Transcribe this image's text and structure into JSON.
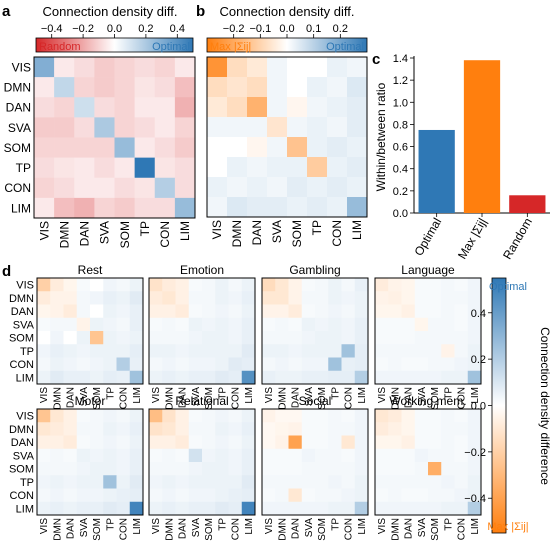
{
  "panel_labels": {
    "a": "a",
    "b": "b",
    "c": "c",
    "d": "d"
  },
  "networks": [
    "VIS",
    "DMN",
    "DAN",
    "SVA",
    "SOM",
    "TP",
    "CON",
    "LIM"
  ],
  "colors": {
    "optimal_blue": "#2f78b5",
    "max_orange": "#ff7f0e",
    "random_red": "#d62728",
    "neutral": "#ffffff"
  },
  "panel_a": {
    "colorbar_title": "Connection density diff.",
    "ticks": [
      "−0.4",
      "−0.2",
      "0.0",
      "0.2",
      "0.4"
    ],
    "tick_values": [
      -0.4,
      -0.2,
      0.0,
      0.2,
      0.4
    ],
    "range": [
      -0.5,
      0.5
    ],
    "left_label": "Random",
    "right_label": "Optimal",
    "matrix": [
      [
        0.3,
        -0.05,
        -0.08,
        -0.12,
        -0.1,
        -0.08,
        -0.1,
        -0.05
      ],
      [
        -0.05,
        0.15,
        -0.1,
        -0.12,
        -0.1,
        -0.06,
        -0.08,
        -0.15
      ],
      [
        -0.08,
        -0.1,
        0.12,
        -0.08,
        -0.1,
        -0.05,
        -0.05,
        -0.18
      ],
      [
        -0.12,
        -0.12,
        -0.08,
        0.2,
        -0.1,
        -0.08,
        -0.05,
        -0.1
      ],
      [
        -0.1,
        -0.1,
        -0.1,
        -0.1,
        0.25,
        -0.05,
        -0.08,
        -0.12
      ],
      [
        -0.08,
        -0.06,
        -0.05,
        -0.08,
        -0.05,
        0.55,
        -0.06,
        -0.08
      ],
      [
        -0.1,
        -0.08,
        -0.05,
        -0.05,
        -0.08,
        -0.06,
        0.18,
        -0.08
      ],
      [
        -0.05,
        -0.15,
        -0.18,
        -0.1,
        -0.12,
        -0.08,
        -0.08,
        0.25
      ]
    ]
  },
  "panel_b": {
    "colorbar_title": "Connection density diff.",
    "ticks": [
      "−0.2",
      "−0.1",
      "0.0",
      "0.1",
      "0.2"
    ],
    "tick_values": [
      -0.2,
      -0.1,
      0.0,
      0.1,
      0.2
    ],
    "range": [
      -0.3,
      0.3
    ],
    "left_label": "Max |Σij|",
    "right_label": "Optimal",
    "matrix": [
      [
        -0.25,
        -0.08,
        -0.05,
        0.02,
        0.0,
        0.0,
        0.03,
        0.02
      ],
      [
        -0.08,
        -0.06,
        -0.08,
        0.02,
        0.0,
        0.03,
        0.02,
        0.05
      ],
      [
        -0.05,
        -0.08,
        -0.18,
        0.02,
        -0.02,
        0.02,
        0.03,
        0.04
      ],
      [
        0.02,
        0.02,
        0.02,
        -0.06,
        0.02,
        0.03,
        0.02,
        0.04
      ],
      [
        0.0,
        0.0,
        -0.02,
        0.02,
        -0.14,
        0.03,
        0.04,
        0.03
      ],
      [
        0.0,
        0.03,
        0.02,
        0.03,
        0.03,
        -0.12,
        0.03,
        0.04
      ],
      [
        0.03,
        0.02,
        0.03,
        0.02,
        0.04,
        0.03,
        0.04,
        0.03
      ],
      [
        0.02,
        0.05,
        0.04,
        0.04,
        0.03,
        0.04,
        0.03,
        0.15
      ]
    ]
  },
  "panel_c": {
    "ylabel": "Within/between ratio",
    "yticks": [
      "0.0",
      "0.2",
      "0.4",
      "0.6",
      "0.8",
      "1.0",
      "1.2",
      "1.4"
    ],
    "ytick_values": [
      0.0,
      0.2,
      0.4,
      0.6,
      0.8,
      1.0,
      1.2,
      1.4
    ],
    "categories": [
      "Optimal",
      "Max |Σij|",
      "Random"
    ],
    "values": [
      0.75,
      1.38,
      0.16
    ]
  },
  "panel_d": {
    "colorbar_title": "Connection density difference",
    "ticks": [
      "−0.4",
      "−0.2",
      "0.0",
      "0.2",
      "0.4"
    ],
    "tick_values": [
      -0.4,
      -0.2,
      0.0,
      0.2,
      0.4
    ],
    "range": [
      -0.55,
      0.55
    ],
    "top_label": "Optimal",
    "bottom_label": "Max |Σij|",
    "tasks": [
      {
        "name": "Rest",
        "matrix": [
          [
            -0.2,
            -0.08,
            -0.04,
            0.02,
            0.0,
            0.04,
            0.03,
            0.05
          ],
          [
            -0.08,
            -0.05,
            -0.05,
            0.03,
            0.04,
            0.06,
            0.05,
            0.08
          ],
          [
            -0.04,
            -0.05,
            -0.08,
            0.03,
            0.0,
            0.05,
            0.04,
            0.06
          ],
          [
            0.02,
            0.03,
            0.03,
            -0.05,
            0.05,
            0.04,
            0.03,
            0.06
          ],
          [
            0.0,
            0.04,
            0.0,
            0.05,
            -0.25,
            0.05,
            0.04,
            0.05
          ],
          [
            0.04,
            0.06,
            0.05,
            0.04,
            0.05,
            0.05,
            0.05,
            0.07
          ],
          [
            0.03,
            0.05,
            0.04,
            0.03,
            0.04,
            0.05,
            0.2,
            0.06
          ],
          [
            0.05,
            0.08,
            0.06,
            0.06,
            0.05,
            0.07,
            0.06,
            0.25
          ]
        ]
      },
      {
        "name": "Emotion",
        "matrix": [
          [
            -0.12,
            -0.08,
            -0.06,
            0.02,
            0.03,
            0.05,
            0.03,
            0.05
          ],
          [
            -0.08,
            -0.1,
            -0.06,
            0.03,
            0.03,
            0.05,
            0.04,
            0.06
          ],
          [
            -0.06,
            -0.06,
            -0.08,
            0.02,
            0.03,
            0.04,
            0.03,
            0.05
          ],
          [
            0.02,
            0.03,
            0.02,
            0.05,
            0.04,
            0.05,
            0.04,
            0.06
          ],
          [
            0.03,
            0.03,
            0.03,
            0.04,
            0.05,
            0.05,
            0.04,
            0.06
          ],
          [
            0.05,
            0.05,
            0.04,
            0.05,
            0.05,
            0.05,
            0.05,
            0.08
          ],
          [
            0.03,
            0.04,
            0.03,
            0.04,
            0.04,
            0.05,
            0.08,
            0.07
          ],
          [
            0.05,
            0.06,
            0.05,
            0.06,
            0.06,
            0.08,
            0.07,
            0.45
          ]
        ]
      },
      {
        "name": "Gambling",
        "matrix": [
          [
            -0.15,
            -0.1,
            -0.05,
            0.02,
            0.03,
            0.05,
            0.03,
            0.06
          ],
          [
            -0.1,
            -0.1,
            -0.05,
            0.03,
            0.03,
            0.05,
            0.04,
            0.05
          ],
          [
            -0.05,
            -0.05,
            -0.08,
            0.02,
            0.03,
            0.04,
            0.03,
            0.05
          ],
          [
            0.02,
            0.03,
            0.02,
            0.05,
            0.04,
            0.05,
            0.04,
            0.06
          ],
          [
            0.03,
            0.03,
            0.03,
            0.04,
            0.05,
            0.05,
            0.04,
            0.06
          ],
          [
            0.05,
            0.05,
            0.04,
            0.05,
            0.05,
            0.05,
            0.25,
            0.07
          ],
          [
            0.03,
            0.04,
            0.03,
            0.04,
            0.04,
            0.25,
            0.06,
            0.07
          ],
          [
            0.06,
            0.05,
            0.05,
            0.06,
            0.06,
            0.07,
            0.07,
            0.2
          ]
        ]
      },
      {
        "name": "Language",
        "matrix": [
          [
            -0.08,
            -0.05,
            -0.04,
            0.02,
            0.02,
            0.03,
            0.02,
            0.04
          ],
          [
            -0.05,
            -0.06,
            -0.04,
            0.02,
            0.02,
            0.03,
            0.03,
            0.04
          ],
          [
            -0.04,
            -0.04,
            -0.06,
            0.02,
            0.02,
            0.03,
            0.02,
            0.04
          ],
          [
            0.02,
            0.02,
            0.02,
            -0.04,
            0.03,
            0.03,
            0.02,
            0.04
          ],
          [
            0.02,
            0.02,
            0.02,
            0.03,
            0.03,
            0.03,
            0.03,
            0.04
          ],
          [
            0.03,
            0.03,
            0.03,
            0.03,
            0.03,
            -0.05,
            0.03,
            0.05
          ],
          [
            0.02,
            0.03,
            0.02,
            0.02,
            0.03,
            0.03,
            0.04,
            0.05
          ],
          [
            0.04,
            0.04,
            0.04,
            0.04,
            0.04,
            0.05,
            0.05,
            0.25
          ]
        ]
      },
      {
        "name": "Motor",
        "matrix": [
          [
            -0.25,
            -0.1,
            -0.06,
            0.02,
            0.03,
            0.04,
            0.03,
            0.05
          ],
          [
            -0.1,
            -0.08,
            -0.06,
            0.03,
            0.03,
            0.05,
            0.04,
            0.06
          ],
          [
            -0.06,
            -0.06,
            -0.08,
            0.02,
            0.03,
            0.04,
            0.03,
            0.05
          ],
          [
            0.02,
            0.03,
            0.02,
            0.05,
            0.04,
            0.05,
            0.04,
            0.06
          ],
          [
            0.03,
            0.03,
            0.03,
            0.04,
            0.05,
            0.05,
            0.04,
            0.06
          ],
          [
            0.04,
            0.05,
            0.04,
            0.05,
            0.05,
            0.25,
            0.05,
            0.08
          ],
          [
            0.03,
            0.04,
            0.03,
            0.04,
            0.04,
            0.05,
            0.06,
            0.07
          ],
          [
            0.05,
            0.06,
            0.05,
            0.06,
            0.06,
            0.08,
            0.07,
            0.5
          ]
        ]
      },
      {
        "name": "Relational",
        "matrix": [
          [
            -0.28,
            -0.12,
            -0.06,
            0.02,
            0.03,
            0.04,
            0.03,
            0.05
          ],
          [
            -0.12,
            -0.1,
            -0.06,
            0.03,
            0.03,
            0.05,
            0.04,
            0.06
          ],
          [
            -0.06,
            -0.06,
            -0.08,
            0.02,
            0.03,
            0.04,
            0.03,
            0.05
          ],
          [
            0.02,
            0.03,
            0.02,
            0.12,
            0.04,
            0.05,
            0.04,
            0.06
          ],
          [
            0.03,
            0.03,
            0.03,
            0.04,
            0.05,
            0.05,
            0.04,
            0.06
          ],
          [
            0.04,
            0.05,
            0.04,
            0.05,
            0.05,
            0.05,
            0.05,
            0.08
          ],
          [
            0.03,
            0.04,
            0.03,
            0.04,
            0.04,
            0.05,
            0.06,
            0.07
          ],
          [
            0.05,
            0.06,
            0.05,
            0.06,
            0.06,
            0.08,
            0.07,
            0.5
          ]
        ]
      },
      {
        "name": "Social",
        "matrix": [
          [
            -0.05,
            -0.03,
            -0.03,
            0.02,
            0.02,
            0.03,
            0.02,
            0.04
          ],
          [
            -0.03,
            -0.04,
            -0.05,
            0.02,
            0.02,
            0.03,
            0.03,
            0.04
          ],
          [
            -0.03,
            -0.05,
            -0.4,
            0.02,
            0.02,
            0.03,
            -0.1,
            0.04
          ],
          [
            0.02,
            0.02,
            0.02,
            0.04,
            0.03,
            0.03,
            0.02,
            0.04
          ],
          [
            0.02,
            0.02,
            0.02,
            0.03,
            0.03,
            0.03,
            0.03,
            0.04
          ],
          [
            0.03,
            0.03,
            0.03,
            0.03,
            0.03,
            0.04,
            0.03,
            0.05
          ],
          [
            0.02,
            0.03,
            -0.1,
            0.02,
            0.03,
            0.03,
            0.04,
            0.05
          ],
          [
            0.04,
            0.04,
            0.04,
            0.04,
            0.04,
            0.05,
            0.05,
            0.2
          ]
        ]
      },
      {
        "name": "Working mem.",
        "matrix": [
          [
            -0.1,
            -0.08,
            -0.04,
            0.02,
            0.02,
            0.03,
            0.02,
            0.04
          ],
          [
            -0.08,
            -0.06,
            -0.04,
            0.02,
            0.02,
            0.03,
            0.03,
            0.04
          ],
          [
            -0.04,
            -0.04,
            -0.06,
            0.02,
            0.02,
            0.03,
            0.02,
            0.04
          ],
          [
            0.02,
            0.02,
            0.02,
            0.04,
            0.03,
            0.03,
            0.02,
            0.04
          ],
          [
            0.02,
            0.02,
            0.02,
            0.03,
            -0.35,
            0.03,
            0.03,
            0.04
          ],
          [
            0.03,
            0.03,
            0.03,
            0.03,
            0.03,
            0.04,
            0.03,
            0.05
          ],
          [
            0.02,
            0.03,
            0.02,
            0.02,
            0.03,
            0.03,
            0.04,
            0.05
          ],
          [
            0.04,
            0.04,
            0.04,
            0.04,
            0.04,
            0.05,
            0.05,
            0.2
          ]
        ]
      }
    ]
  },
  "chart_data": [
    {
      "type": "heatmap",
      "categories": [
        "VIS",
        "DMN",
        "DAN",
        "SVA",
        "SOM",
        "TP",
        "CON",
        "LIM"
      ],
      "colorbar_label": "Connection density diff.",
      "legend": [
        "Random",
        "Optimal"
      ]
    },
    {
      "type": "heatmap",
      "categories": [
        "VIS",
        "DMN",
        "DAN",
        "SVA",
        "SOM",
        "TP",
        "CON",
        "LIM"
      ],
      "colorbar_label": "Connection density diff.",
      "legend": [
        "Max |Σij|",
        "Optimal"
      ]
    },
    {
      "type": "bar",
      "categories": [
        "Optimal",
        "Max |Σij|",
        "Random"
      ],
      "values": [
        0.75,
        1.38,
        0.16
      ],
      "ylabel": "Within/between ratio",
      "ylim": [
        0,
        1.4
      ]
    },
    {
      "type": "heatmap",
      "categories": [
        "VIS",
        "DMN",
        "DAN",
        "SVA",
        "SOM",
        "TP",
        "CON",
        "LIM"
      ],
      "panels": [
        "Rest",
        "Emotion",
        "Gambling",
        "Language",
        "Motor",
        "Relational",
        "Social",
        "Working mem."
      ],
      "colorbar_label": "Connection density difference",
      "legend": [
        "Optimal",
        "Max |Σij|"
      ]
    }
  ]
}
